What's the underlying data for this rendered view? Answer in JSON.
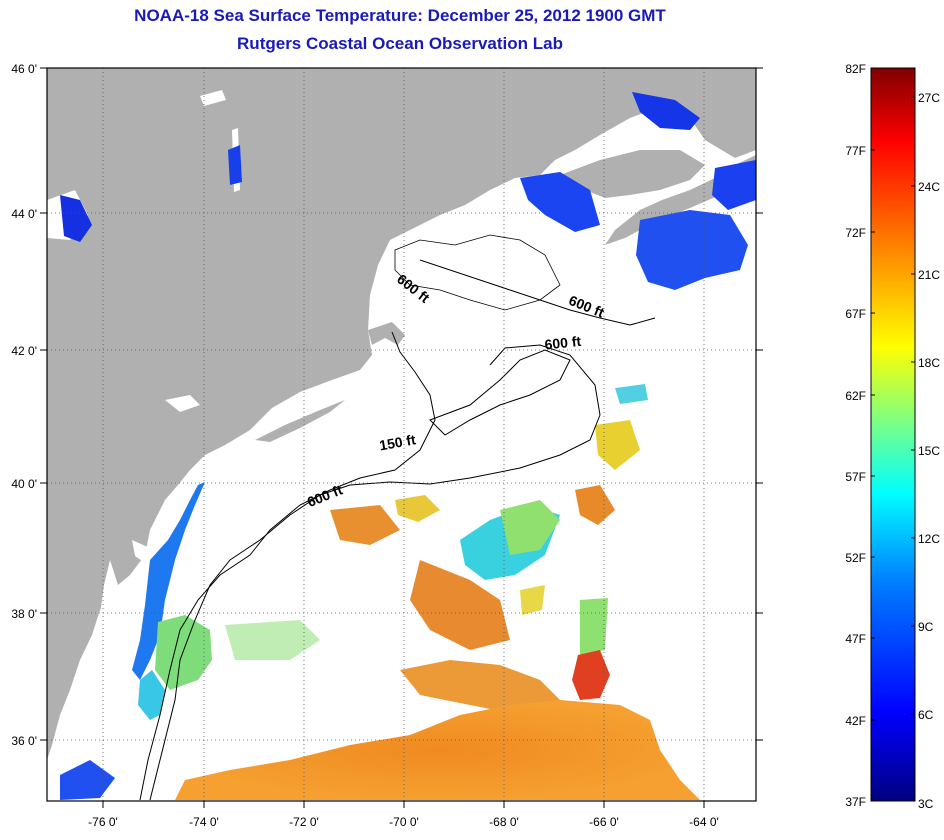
{
  "title": "NOAA-18 Sea Surface Temperature:  December 25, 2012 1900 GMT",
  "subtitle": "Rutgers Coastal Ocean Observation Lab",
  "map": {
    "lat_labels": [
      "46 0'",
      "44 0'",
      "42 0'",
      "40 0'",
      "38 0'",
      "36 0'"
    ],
    "lon_labels": [
      "-76 0'",
      "-74 0'",
      "-72 0'",
      "-70 0'",
      "-68 0'",
      "-66 0'",
      "-64 0'"
    ],
    "land_color": "#b0b0b0",
    "water_color": "#ffffff",
    "contour_labels": [
      {
        "text": "600 ft",
        "isobath": "600 ft"
      },
      {
        "text": "600 ft",
        "isobath": "600 ft"
      },
      {
        "text": "600 ft",
        "isobath": "600 ft"
      },
      {
        "text": "150 ft",
        "isobath": "150 ft"
      },
      {
        "text": "600 ft",
        "isobath": "600 ft"
      }
    ]
  },
  "colorbar": {
    "f_labels": [
      "82F",
      "77F",
      "72F",
      "67F",
      "62F",
      "57F",
      "52F",
      "47F",
      "42F",
      "37F"
    ],
    "c_labels": [
      "27C",
      "24C",
      "21C",
      "18C",
      "15C",
      "12C",
      "9C",
      "6C",
      "3C"
    ],
    "colors": [
      "#00007f",
      "#0000ff",
      "#007fff",
      "#00ffff",
      "#7fff7f",
      "#ffff00",
      "#ff7f00",
      "#ff0000",
      "#7f0000"
    ]
  }
}
